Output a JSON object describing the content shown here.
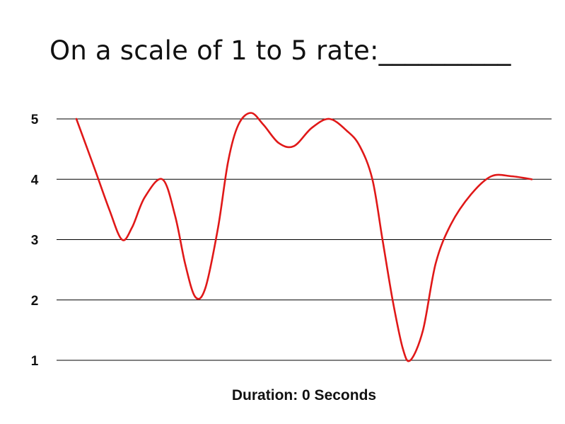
{
  "chart_data": {
    "type": "line",
    "title": "On a scale of 1 to 5 rate:__________",
    "xlabel": "Duration: 0 Seconds",
    "ylabel": "",
    "ylim": [
      1,
      5
    ],
    "yticks": [
      "1",
      "2",
      "3",
      "4",
      "5"
    ],
    "grid": true,
    "series": [
      {
        "color": "#e01818",
        "points": [
          [
            0,
            5.0
          ],
          [
            0.035,
            4.2
          ],
          [
            0.065,
            3.5
          ],
          [
            0.09,
            3.0
          ],
          [
            0.11,
            3.2
          ],
          [
            0.135,
            3.7
          ],
          [
            0.17,
            4.0
          ],
          [
            0.195,
            3.4
          ],
          [
            0.215,
            2.6
          ],
          [
            0.235,
            2.05
          ],
          [
            0.255,
            2.2
          ],
          [
            0.28,
            3.2
          ],
          [
            0.3,
            4.3
          ],
          [
            0.32,
            4.9
          ],
          [
            0.345,
            5.1
          ],
          [
            0.37,
            4.9
          ],
          [
            0.4,
            4.6
          ],
          [
            0.43,
            4.55
          ],
          [
            0.465,
            4.85
          ],
          [
            0.5,
            5.0
          ],
          [
            0.535,
            4.8
          ],
          [
            0.56,
            4.55
          ],
          [
            0.585,
            4.0
          ],
          [
            0.605,
            3.0
          ],
          [
            0.625,
            2.0
          ],
          [
            0.645,
            1.2
          ],
          [
            0.66,
            1.0
          ],
          [
            0.685,
            1.5
          ],
          [
            0.71,
            2.6
          ],
          [
            0.74,
            3.25
          ],
          [
            0.78,
            3.75
          ],
          [
            0.82,
            4.05
          ],
          [
            0.86,
            4.05
          ],
          [
            0.9,
            4.0
          ]
        ]
      }
    ]
  }
}
